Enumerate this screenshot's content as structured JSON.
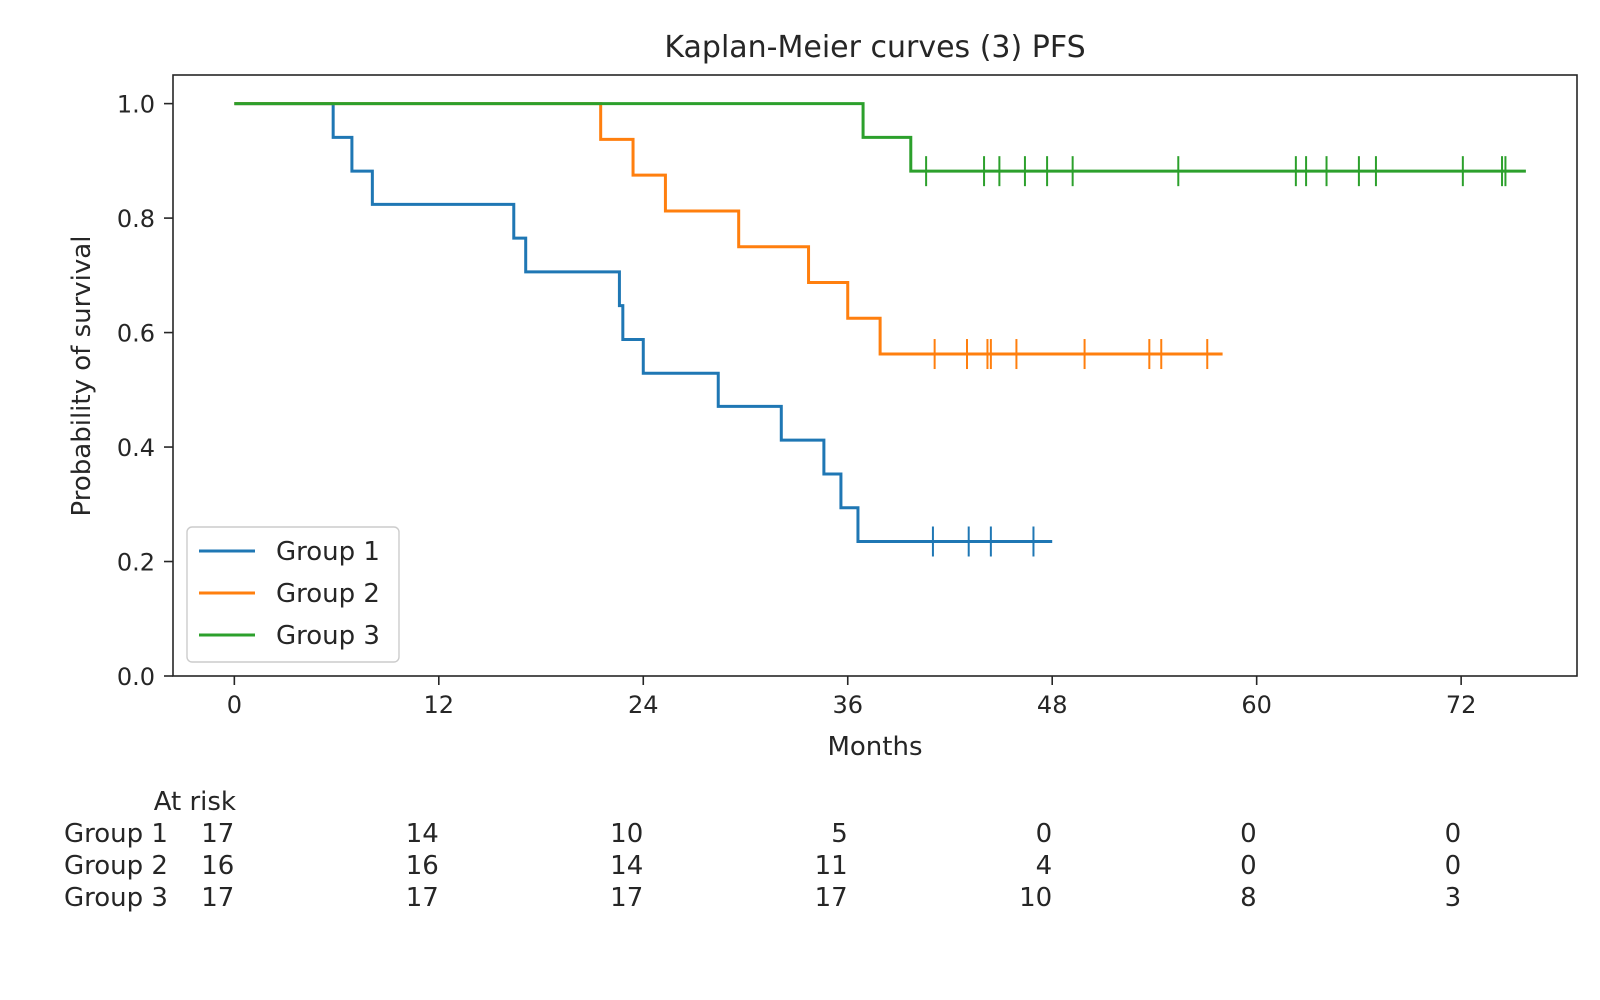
{
  "chart_data": {
    "type": "line",
    "title": "Kaplan-Meier curves (3) PFS",
    "xlabel": "Months",
    "ylabel": "Probability of survival",
    "xlim": [
      -3.6,
      78.8
    ],
    "ylim": [
      0.0,
      1.05
    ],
    "xticks": [
      0,
      12,
      24,
      36,
      48,
      60,
      72
    ],
    "yticks": [
      0.0,
      0.2,
      0.4,
      0.6,
      0.8,
      1.0
    ],
    "xtick_labels": [
      "0",
      "12",
      "24",
      "36",
      "48",
      "60",
      "72"
    ],
    "ytick_labels": [
      "0.0",
      "0.2",
      "0.4",
      "0.6",
      "0.8",
      "1.0"
    ],
    "grid": false,
    "legend_position": "lower-left",
    "series": [
      {
        "name": "Group 1",
        "color": "#1f77b4",
        "end_time": 48.0,
        "steps": [
          [
            0,
            1.0
          ],
          [
            5.8,
            0.941
          ],
          [
            6.9,
            0.882
          ],
          [
            8.1,
            0.824
          ],
          [
            16.4,
            0.765
          ],
          [
            17.1,
            0.706
          ],
          [
            22.6,
            0.647
          ],
          [
            22.8,
            0.588
          ],
          [
            24.0,
            0.529
          ],
          [
            28.4,
            0.471
          ],
          [
            32.1,
            0.412
          ],
          [
            34.6,
            0.353
          ],
          [
            35.6,
            0.294
          ],
          [
            36.6,
            0.235
          ]
        ],
        "censored": [
          41.0,
          43.1,
          44.4,
          46.9
        ]
      },
      {
        "name": "Group 2",
        "color": "#ff7f0e",
        "end_time": 58.0,
        "steps": [
          [
            0,
            1.0
          ],
          [
            21.5,
            0.9375
          ],
          [
            23.4,
            0.875
          ],
          [
            25.3,
            0.8125
          ],
          [
            29.6,
            0.75
          ],
          [
            33.7,
            0.6875
          ],
          [
            36.0,
            0.625
          ],
          [
            37.9,
            0.5625
          ]
        ],
        "censored": [
          41.1,
          43.0,
          44.2,
          44.4,
          45.9,
          49.9,
          53.7,
          54.4,
          57.1
        ]
      },
      {
        "name": "Group 3",
        "color": "#2ca02c",
        "end_time": 75.8,
        "steps": [
          [
            0,
            1.0
          ],
          [
            36.9,
            0.941
          ],
          [
            39.7,
            0.882
          ]
        ],
        "censored": [
          40.6,
          44.0,
          44.9,
          46.4,
          47.7,
          49.2,
          55.4,
          62.3,
          62.9,
          64.1,
          66.0,
          67.0,
          72.1,
          74.4,
          74.6
        ]
      }
    ],
    "at_risk": {
      "label": "At risk",
      "times": [
        0,
        12,
        24,
        36,
        48,
        60,
        72
      ],
      "rows": [
        {
          "name": "Group 1",
          "values": [
            "17",
            "14",
            "10",
            "5",
            "0",
            "0",
            "0"
          ]
        },
        {
          "name": "Group 2",
          "values": [
            "16",
            "16",
            "14",
            "11",
            "4",
            "0",
            "0"
          ]
        },
        {
          "name": "Group 3",
          "values": [
            "17",
            "17",
            "17",
            "17",
            "10",
            "8",
            "3"
          ]
        }
      ]
    }
  }
}
